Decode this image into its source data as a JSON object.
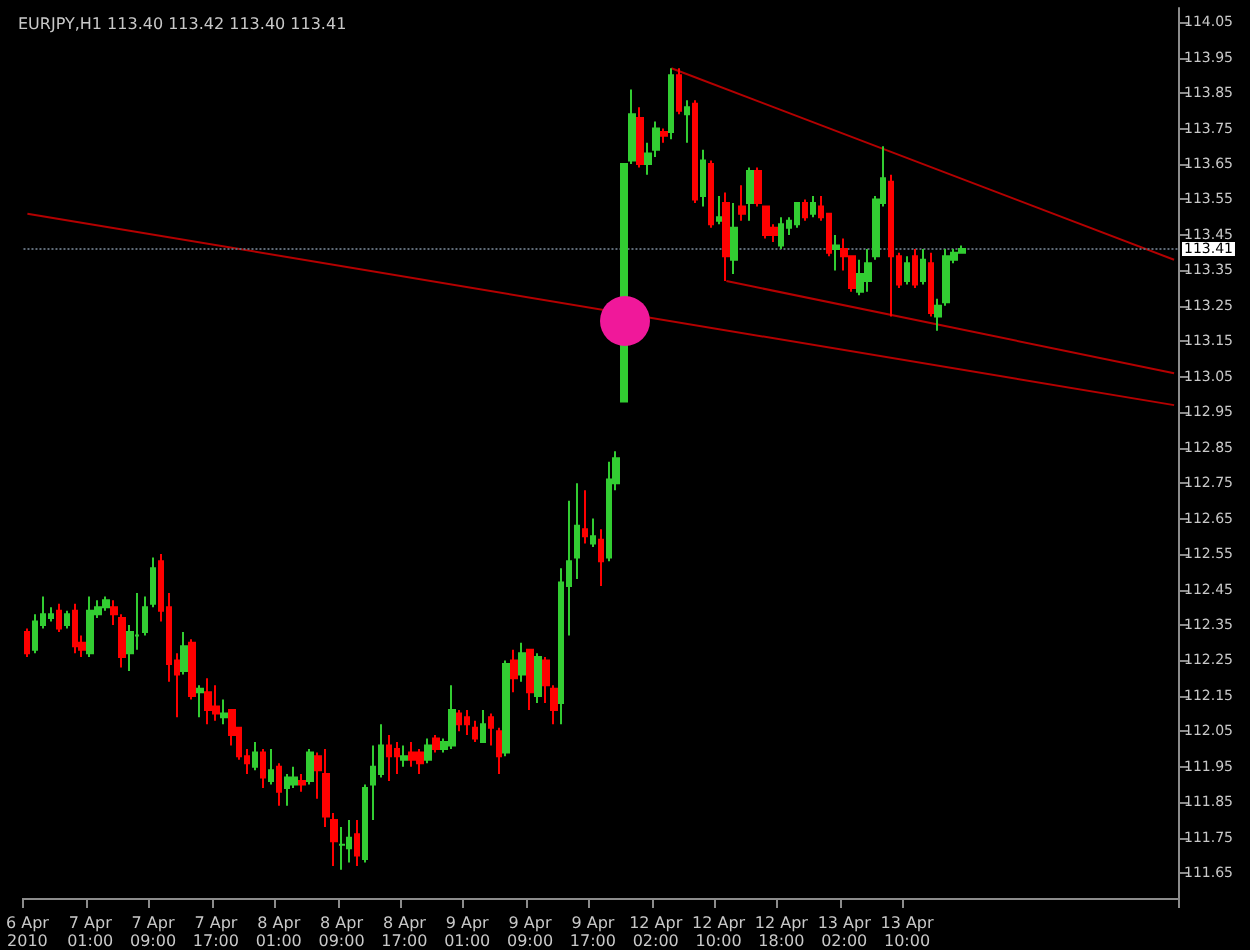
{
  "chart_data": {
    "type": "candlestick",
    "title": "EURJPY,H1 113.40 113.42 113.40 113.41",
    "categories": [
      "6 Apr 2010",
      null,
      null,
      null,
      null,
      null,
      null,
      null,
      "7 Apr 01:00",
      null,
      null,
      null,
      null,
      null,
      null,
      null,
      "7 Apr 09:00",
      null,
      null,
      null,
      null,
      null,
      null,
      null,
      "7 Apr 17:00",
      null,
      null,
      null,
      null,
      null,
      null,
      null,
      "8 Apr 01:00",
      null,
      null,
      null,
      null,
      null,
      null,
      null,
      "8 Apr 09:00",
      null,
      null,
      null,
      null,
      null,
      null,
      null,
      "8 Apr 17:00",
      null,
      null,
      null,
      null,
      null,
      null,
      null,
      "9 Apr 01:00",
      null,
      null,
      null,
      null,
      null,
      null,
      null,
      "9 Apr 09:00",
      null,
      null,
      null,
      null,
      null,
      null,
      null,
      "9 Apr 17:00",
      null,
      null,
      null,
      null,
      null,
      null,
      null,
      "12 Apr 02:00",
      null,
      null,
      null,
      null,
      null,
      null,
      null,
      "12 Apr 10:00",
      null,
      null,
      null,
      null,
      null,
      null,
      null,
      "12 Apr 18:00",
      null,
      null,
      null,
      null,
      null,
      null,
      null,
      "13 Apr 02:00",
      null,
      null,
      null,
      null,
      null,
      null,
      null,
      "13 Apr 10:00",
      null,
      null,
      null,
      null,
      null,
      null,
      null,
      null,
      null,
      null,
      null,
      null,
      null,
      null,
      null,
      null,
      null,
      null,
      null,
      null,
      null,
      null,
      null,
      null,
      null,
      null,
      null,
      null,
      null,
      null,
      null,
      null,
      null,
      null
    ],
    "ohlc": [
      [
        112.33,
        112.34,
        112.26,
        112.27
      ],
      [
        112.28,
        112.38,
        112.27,
        112.36
      ],
      [
        112.35,
        112.43,
        112.34,
        112.38
      ],
      [
        112.37,
        112.4,
        112.36,
        112.38
      ],
      [
        112.39,
        112.41,
        112.33,
        112.34
      ],
      [
        112.35,
        112.39,
        112.34,
        112.38
      ],
      [
        112.39,
        112.41,
        112.27,
        112.29
      ],
      [
        112.3,
        112.32,
        112.26,
        112.28
      ],
      [
        112.27,
        112.43,
        112.26,
        112.39
      ],
      [
        112.38,
        112.42,
        112.37,
        112.4
      ],
      [
        112.4,
        112.43,
        112.39,
        112.42
      ],
      [
        112.4,
        112.42,
        112.35,
        112.38
      ],
      [
        112.37,
        112.38,
        112.23,
        112.26
      ],
      [
        112.27,
        112.35,
        112.22,
        112.33
      ],
      [
        112.32,
        112.44,
        112.28,
        112.32
      ],
      [
        112.33,
        112.43,
        112.32,
        112.4
      ],
      [
        112.41,
        112.54,
        112.4,
        112.51
      ],
      [
        112.53,
        112.55,
        112.36,
        112.39
      ],
      [
        112.4,
        112.44,
        112.19,
        112.24
      ],
      [
        112.25,
        112.27,
        112.09,
        112.21
      ],
      [
        112.22,
        112.33,
        112.21,
        112.29
      ],
      [
        112.3,
        112.31,
        112.14,
        112.15
      ],
      [
        112.16,
        112.18,
        112.09,
        112.17
      ],
      [
        112.16,
        112.2,
        112.07,
        112.11
      ],
      [
        112.12,
        112.18,
        112.08,
        112.1
      ],
      [
        112.09,
        112.14,
        112.07,
        112.1
      ],
      [
        112.11,
        112.11,
        112.01,
        112.04
      ],
      [
        112.06,
        112.06,
        111.97,
        111.98
      ],
      [
        111.98,
        112.0,
        111.93,
        111.96
      ],
      [
        111.95,
        112.02,
        111.94,
        111.99
      ],
      [
        111.99,
        112.0,
        111.89,
        111.92
      ],
      [
        111.91,
        112.0,
        111.9,
        111.94
      ],
      [
        111.95,
        111.96,
        111.84,
        111.88
      ],
      [
        111.89,
        111.93,
        111.84,
        111.92
      ],
      [
        111.9,
        111.95,
        111.89,
        111.92
      ],
      [
        111.91,
        111.93,
        111.88,
        111.9
      ],
      [
        111.91,
        112.0,
        111.9,
        111.99
      ],
      [
        111.98,
        111.99,
        111.86,
        111.94
      ],
      [
        111.93,
        112.0,
        111.78,
        111.81
      ],
      [
        111.8,
        111.82,
        111.67,
        111.74
      ],
      [
        111.73,
        111.78,
        111.66,
        111.73
      ],
      [
        111.72,
        111.8,
        111.68,
        111.75
      ],
      [
        111.76,
        111.8,
        111.67,
        111.7
      ],
      [
        111.69,
        111.9,
        111.68,
        111.89
      ],
      [
        111.9,
        112.01,
        111.8,
        111.95
      ],
      [
        111.93,
        112.07,
        111.92,
        112.01
      ],
      [
        112.01,
        112.04,
        111.91,
        111.98
      ],
      [
        112.0,
        112.02,
        111.93,
        111.98
      ],
      [
        111.97,
        112.01,
        111.95,
        111.98
      ],
      [
        111.99,
        112.02,
        111.95,
        111.97
      ],
      [
        111.99,
        112.0,
        111.93,
        111.96
      ],
      [
        111.97,
        112.03,
        111.96,
        112.01
      ],
      [
        112.03,
        112.04,
        111.99,
        112.0
      ],
      [
        112.0,
        112.03,
        111.99,
        112.02
      ],
      [
        112.01,
        112.18,
        112.0,
        112.11
      ],
      [
        112.1,
        112.11,
        112.05,
        112.07
      ],
      [
        112.09,
        112.11,
        112.04,
        112.07
      ],
      [
        112.06,
        112.08,
        112.02,
        112.03
      ],
      [
        112.02,
        112.11,
        112.02,
        112.07
      ],
      [
        112.09,
        112.1,
        112.01,
        112.06
      ],
      [
        112.05,
        112.06,
        111.93,
        111.98
      ],
      [
        111.99,
        112.25,
        111.98,
        112.24
      ],
      [
        112.25,
        112.28,
        112.16,
        112.2
      ],
      [
        112.21,
        112.3,
        112.19,
        112.27
      ],
      [
        112.28,
        112.28,
        112.11,
        112.16
      ],
      [
        112.15,
        112.27,
        112.13,
        112.26
      ],
      [
        112.25,
        112.26,
        112.13,
        112.18
      ],
      [
        112.17,
        112.18,
        112.07,
        112.11
      ],
      [
        112.13,
        112.51,
        112.07,
        112.47
      ],
      [
        112.46,
        112.7,
        112.32,
        112.53
      ],
      [
        112.54,
        112.75,
        112.48,
        112.63
      ],
      [
        112.62,
        112.73,
        112.58,
        112.6
      ],
      [
        112.58,
        112.65,
        112.57,
        112.6
      ],
      [
        112.59,
        112.62,
        112.46,
        112.53
      ],
      [
        112.54,
        112.81,
        112.53,
        112.76
      ],
      [
        112.75,
        112.84,
        112.73,
        112.82
      ],
      [
        112.98,
        113.65,
        112.98,
        113.65
      ],
      [
        113.66,
        113.86,
        113.65,
        113.79
      ],
      [
        113.78,
        113.81,
        113.64,
        113.65
      ],
      [
        113.65,
        113.71,
        113.62,
        113.68
      ],
      [
        113.69,
        113.77,
        113.67,
        113.75
      ],
      [
        113.74,
        113.75,
        113.71,
        113.73
      ],
      [
        113.74,
        113.92,
        113.72,
        113.9
      ],
      [
        113.9,
        113.92,
        113.79,
        113.8
      ],
      [
        113.79,
        113.83,
        113.71,
        113.81
      ],
      [
        113.82,
        113.83,
        113.54,
        113.55
      ],
      [
        113.56,
        113.69,
        113.53,
        113.66
      ],
      [
        113.65,
        113.66,
        113.47,
        113.48
      ],
      [
        113.49,
        113.56,
        113.48,
        113.5
      ],
      [
        113.54,
        113.57,
        113.32,
        113.39
      ],
      [
        113.38,
        113.54,
        113.34,
        113.47
      ],
      [
        113.53,
        113.59,
        113.49,
        113.51
      ],
      [
        113.54,
        113.64,
        113.49,
        113.63
      ],
      [
        113.63,
        113.64,
        113.53,
        113.54
      ],
      [
        113.53,
        113.53,
        113.44,
        113.45
      ],
      [
        113.47,
        113.48,
        113.43,
        113.45
      ],
      [
        113.42,
        113.5,
        113.41,
        113.48
      ],
      [
        113.47,
        113.5,
        113.45,
        113.49
      ],
      [
        113.48,
        113.54,
        113.47,
        113.54
      ],
      [
        113.54,
        113.55,
        113.49,
        113.5
      ],
      [
        113.51,
        113.56,
        113.5,
        113.54
      ],
      [
        113.53,
        113.56,
        113.49,
        113.5
      ],
      [
        113.51,
        113.51,
        113.39,
        113.4
      ],
      [
        113.41,
        113.45,
        113.35,
        113.42
      ],
      [
        113.41,
        113.44,
        113.35,
        113.39
      ],
      [
        113.39,
        113.39,
        113.29,
        113.3
      ],
      [
        113.29,
        113.38,
        113.28,
        113.34
      ],
      [
        113.32,
        113.41,
        113.29,
        113.37
      ],
      [
        113.39,
        113.56,
        113.38,
        113.55
      ],
      [
        113.54,
        113.7,
        113.53,
        113.61
      ],
      [
        113.6,
        113.62,
        113.22,
        113.39
      ],
      [
        113.39,
        113.4,
        113.3,
        113.31
      ],
      [
        113.32,
        113.39,
        113.31,
        113.37
      ],
      [
        113.39,
        113.41,
        113.3,
        113.31
      ],
      [
        113.32,
        113.41,
        113.31,
        113.38
      ],
      [
        113.37,
        113.4,
        113.22,
        113.23
      ],
      [
        113.22,
        113.27,
        113.18,
        113.25
      ],
      [
        113.26,
        113.41,
        113.25,
        113.39
      ],
      [
        113.38,
        113.41,
        113.37,
        113.4
      ],
      [
        113.4,
        113.42,
        113.4,
        113.41
      ],
      null,
      null,
      null,
      null,
      null,
      null,
      null,
      null,
      null,
      null,
      null,
      null,
      null,
      null,
      null,
      null,
      null,
      null,
      null,
      null,
      null,
      null,
      null,
      null,
      null,
      null,
      null
    ],
    "colors": [
      "#ff0000",
      "#32cd32",
      "#32cd32",
      "#32cd32",
      "#ff0000",
      "#32cd32",
      "#ff0000",
      "#ff0000",
      "#32cd32",
      "#32cd32",
      "#32cd32",
      "#ff0000",
      "#ff0000",
      "#32cd32",
      "#32cd32",
      "#32cd32",
      "#32cd32",
      "#ff0000",
      "#ff0000",
      "#ff0000",
      "#32cd32",
      "#ff0000",
      "#32cd32",
      "#ff0000",
      "#ff0000",
      "#32cd32",
      "#ff0000",
      "#ff0000",
      "#ff0000",
      "#32cd32",
      "#ff0000",
      "#32cd32",
      "#ff0000",
      "#32cd32",
      "#32cd32",
      "#ff0000",
      "#32cd32",
      "#ff0000",
      "#ff0000",
      "#ff0000",
      "#32cd32",
      "#32cd32",
      "#ff0000",
      "#32cd32",
      "#32cd32",
      "#32cd32",
      "#ff0000",
      "#ff0000",
      "#32cd32",
      "#ff0000",
      "#ff0000",
      "#32cd32",
      "#ff0000",
      "#32cd32",
      "#32cd32",
      "#ff0000",
      "#ff0000",
      "#ff0000",
      "#32cd32",
      "#ff0000",
      "#ff0000",
      "#32cd32",
      "#ff0000",
      "#32cd32",
      "#ff0000",
      "#32cd32",
      "#ff0000",
      "#ff0000",
      "#32cd32",
      "#32cd32",
      "#32cd32",
      "#ff0000",
      "#32cd32",
      "#ff0000",
      "#32cd32",
      "#32cd32",
      "#32cd32",
      "#32cd32",
      "#ff0000",
      "#32cd32",
      "#32cd32",
      "#ff0000",
      "#32cd32",
      "#ff0000",
      "#32cd32",
      "#ff0000",
      "#32cd32",
      "#ff0000",
      "#32cd32",
      "#ff0000",
      "#32cd32",
      "#ff0000",
      "#32cd32",
      "#ff0000",
      "#ff0000",
      "#ff0000",
      "#32cd32",
      "#32cd32",
      "#32cd32",
      "#ff0000",
      "#32cd32",
      "#ff0000",
      "#ff0000",
      "#32cd32",
      "#ff0000",
      "#ff0000",
      "#32cd32",
      "#32cd32",
      "#32cd32",
      "#32cd32",
      "#ff0000",
      "#ff0000",
      "#32cd32",
      "#ff0000",
      "#32cd32",
      "#ff0000",
      "#32cd32",
      "#32cd32",
      "#32cd32",
      "#32cd32",
      null,
      null,
      null,
      null,
      null,
      null,
      null,
      null,
      null,
      null,
      null,
      null,
      null,
      null,
      null,
      null,
      null,
      null,
      null,
      null,
      null,
      null,
      null,
      null,
      null,
      null,
      null
    ],
    "series": [
      {
        "type": "line",
        "color": "#b40000",
        "line_style": "solid",
        "values": [
          113.51,
          null,
          null,
          null,
          null,
          null,
          null,
          null,
          null,
          null,
          null,
          null,
          null,
          null,
          null,
          null,
          null,
          null,
          null,
          null,
          null,
          null,
          null,
          null,
          null,
          null,
          null,
          null,
          null,
          null,
          null,
          null,
          null,
          null,
          null,
          null,
          null,
          null,
          null,
          null,
          null,
          null,
          null,
          null,
          null,
          null,
          null,
          null,
          null,
          null,
          null,
          null,
          null,
          null,
          null,
          null,
          null,
          null,
          null,
          null,
          null,
          null,
          null,
          null,
          null,
          null,
          null,
          null,
          null,
          null,
          null,
          null,
          null,
          null,
          null,
          null,
          null,
          null,
          null,
          null,
          null,
          null,
          null,
          null,
          null,
          null,
          null,
          null,
          null,
          null,
          null,
          null,
          null,
          null,
          null,
          null,
          null,
          null,
          null,
          null,
          null,
          null,
          null,
          null,
          null,
          null,
          null,
          null,
          null,
          null,
          null,
          null,
          null,
          null,
          null,
          null,
          null,
          null,
          null,
          null,
          null,
          null,
          null,
          null,
          null,
          null,
          null,
          null,
          null,
          null,
          null,
          null,
          null,
          null,
          null,
          null,
          null,
          null,
          null,
          null,
          null,
          null,
          null,
          null,
          null,
          null,
          112.97
        ]
      },
      {
        "type": "line",
        "color": "#b40000",
        "line_style": "solid",
        "values": [
          null,
          null,
          null,
          null,
          null,
          null,
          null,
          null,
          null,
          null,
          null,
          null,
          null,
          null,
          null,
          null,
          null,
          null,
          null,
          null,
          null,
          null,
          null,
          null,
          null,
          null,
          null,
          null,
          null,
          null,
          null,
          null,
          null,
          null,
          null,
          null,
          null,
          null,
          null,
          null,
          null,
          null,
          null,
          null,
          null,
          null,
          null,
          null,
          null,
          null,
          null,
          null,
          null,
          null,
          null,
          null,
          null,
          null,
          null,
          null,
          null,
          null,
          null,
          null,
          null,
          null,
          null,
          null,
          null,
          null,
          null,
          null,
          null,
          null,
          null,
          null,
          null,
          null,
          null,
          null,
          null,
          null,
          113.92,
          null,
          null,
          null,
          null,
          null,
          null,
          null,
          null,
          null,
          null,
          null,
          null,
          null,
          null,
          null,
          null,
          null,
          null,
          null,
          null,
          null,
          null,
          null,
          null,
          null,
          null,
          null,
          null,
          null,
          null,
          null,
          null,
          null,
          null,
          null,
          null,
          null,
          null,
          null,
          null,
          null,
          null,
          null,
          null,
          null,
          null,
          null,
          null,
          null,
          null,
          null,
          null,
          null,
          null,
          null,
          null,
          null,
          null,
          null,
          null,
          null,
          null,
          null,
          113.38
        ]
      },
      {
        "type": "line",
        "color": "#b40000",
        "line_style": "solid",
        "values": [
          null,
          null,
          null,
          null,
          null,
          null,
          null,
          null,
          null,
          null,
          null,
          null,
          null,
          null,
          null,
          null,
          null,
          null,
          null,
          null,
          null,
          null,
          null,
          null,
          null,
          null,
          null,
          null,
          null,
          null,
          null,
          null,
          null,
          null,
          null,
          null,
          null,
          null,
          null,
          null,
          null,
          null,
          null,
          null,
          null,
          null,
          null,
          null,
          null,
          null,
          null,
          null,
          null,
          null,
          null,
          null,
          null,
          null,
          null,
          null,
          null,
          null,
          null,
          null,
          null,
          null,
          null,
          null,
          null,
          null,
          null,
          null,
          null,
          null,
          null,
          null,
          null,
          null,
          null,
          null,
          null,
          null,
          null,
          null,
          null,
          null,
          null,
          null,
          null,
          113.32,
          null,
          null,
          null,
          null,
          null,
          null,
          null,
          null,
          null,
          null,
          null,
          null,
          null,
          null,
          null,
          null,
          null,
          null,
          null,
          null,
          null,
          null,
          null,
          null,
          null,
          null,
          null,
          null,
          null,
          null,
          null,
          null,
          null,
          null,
          null,
          null,
          null,
          null,
          null,
          null,
          null,
          null,
          null,
          null,
          null,
          null,
          null,
          null,
          null,
          null,
          null,
          null,
          null,
          null,
          null,
          null,
          113.06
        ]
      }
    ],
    "ylim": [
      111.58,
      114.09
    ],
    "yticks": [
      111.65,
      111.75,
      111.85,
      111.95,
      112.05,
      112.15,
      112.25,
      112.35,
      112.45,
      112.55,
      112.65,
      112.75,
      112.85,
      112.95,
      113.05,
      113.15,
      113.25,
      113.35,
      113.45,
      113.55,
      113.65,
      113.75,
      113.85,
      113.95,
      114.05
    ],
    "ref_lines": [
      {
        "axis": "y",
        "value": 113.41,
        "label": "113.41",
        "color": "#5f6b78",
        "line_style": "dotted"
      }
    ],
    "grid": false
  }
}
